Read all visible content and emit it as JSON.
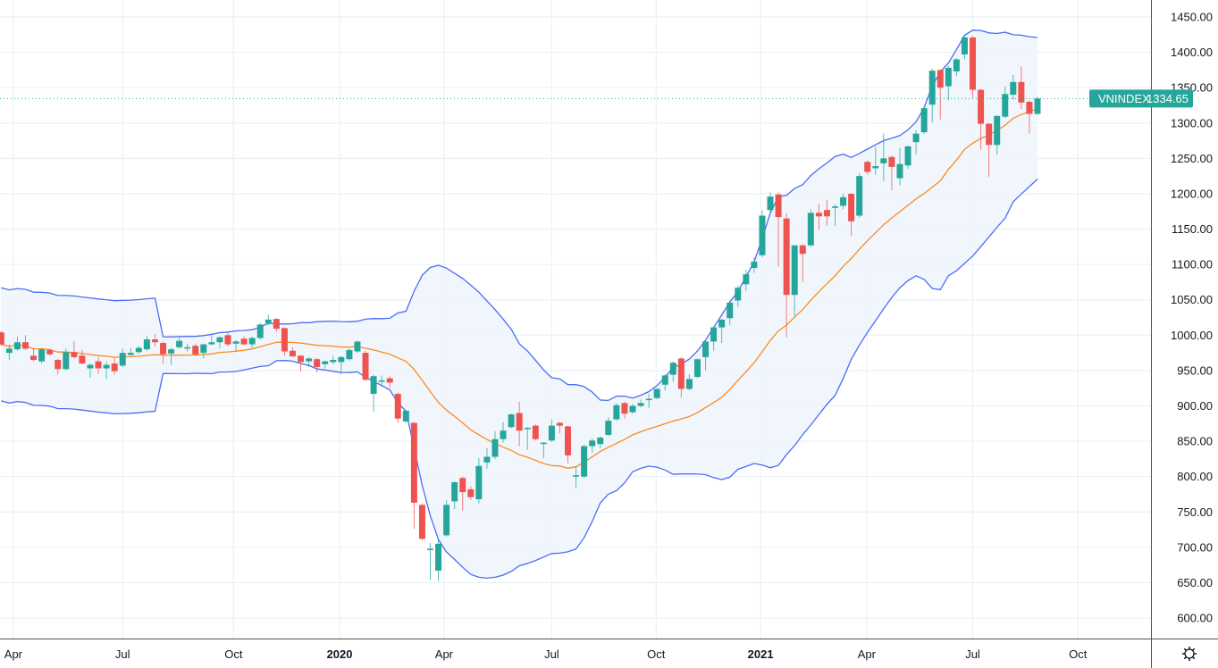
{
  "chart_data": {
    "type": "candlestick",
    "symbol": "VNINDEX",
    "last_price": "1334.65",
    "interval": "weekly",
    "ylim": [
      600,
      1450
    ],
    "y_ticks": [
      "600.00",
      "650.00",
      "700.00",
      "750.00",
      "800.00",
      "850.00",
      "900.00",
      "950.00",
      "1000.00",
      "1050.00",
      "1100.00",
      "1150.00",
      "1200.00",
      "1250.00",
      "1300.00",
      "1350.00",
      "1400.00",
      "1450.00"
    ],
    "x_ticks": [
      "Apr",
      "Jul",
      "Oct",
      "2020",
      "Apr",
      "Jul",
      "Oct",
      "2021",
      "Apr",
      "Jul",
      "Oct"
    ],
    "grid": true,
    "indicators": [
      {
        "type": "bollinger_bands",
        "period": 20,
        "stddev": 2
      }
    ],
    "colors": {
      "up": "#26a69a",
      "down": "#ef5350",
      "band": "#4a6cf7",
      "basis": "#ff8a1f",
      "band_fill": "#eef5fc",
      "grid": "#e6eef5",
      "price_label": "#26a69a"
    },
    "ohlc": [
      [
        1004,
        1006,
        985,
        987
      ],
      [
        975,
        987,
        965,
        981
      ],
      [
        980,
        998,
        978,
        990
      ],
      [
        990,
        1000,
        979,
        981
      ],
      [
        971,
        981,
        963,
        965
      ],
      [
        963,
        982,
        960,
        980
      ],
      [
        979,
        981,
        971,
        973
      ],
      [
        965,
        967,
        944,
        952
      ],
      [
        952,
        981,
        950,
        976
      ],
      [
        976,
        992,
        967,
        969
      ],
      [
        971,
        979,
        958,
        960
      ],
      [
        953,
        960,
        940,
        958
      ],
      [
        963,
        969,
        945,
        953
      ],
      [
        953,
        963,
        938,
        958
      ],
      [
        960,
        968,
        944,
        949
      ],
      [
        957,
        981,
        955,
        975
      ],
      [
        972,
        982,
        971,
        975
      ],
      [
        976,
        985,
        974,
        982
      ],
      [
        980,
        999,
        978,
        994
      ],
      [
        994,
        1002,
        984,
        990
      ],
      [
        989,
        991,
        960,
        973
      ],
      [
        974,
        982,
        958,
        980
      ],
      [
        983,
        999,
        981,
        992
      ],
      [
        983,
        988,
        977,
        983
      ],
      [
        985,
        988,
        971,
        973
      ],
      [
        975,
        988,
        967,
        987
      ],
      [
        987,
        1000,
        986,
        990
      ],
      [
        990,
        998,
        982,
        997
      ],
      [
        1000,
        1004,
        984,
        987
      ],
      [
        988,
        993,
        978,
        991
      ],
      [
        995,
        998,
        986,
        987
      ],
      [
        987,
        998,
        982,
        996
      ],
      [
        996,
        1017,
        994,
        1015
      ],
      [
        1017,
        1029,
        1014,
        1022
      ],
      [
        1023,
        1024,
        1005,
        1009
      ],
      [
        1010,
        1011,
        971,
        977
      ],
      [
        978,
        983,
        969,
        970
      ],
      [
        971,
        972,
        949,
        962
      ],
      [
        963,
        969,
        955,
        967
      ],
      [
        966,
        968,
        947,
        955
      ],
      [
        959,
        964,
        953,
        963
      ],
      [
        962,
        971,
        959,
        965
      ],
      [
        962,
        971,
        945,
        969
      ],
      [
        966,
        981,
        964,
        979
      ],
      [
        977,
        992,
        975,
        991
      ],
      [
        975,
        978,
        935,
        937
      ],
      [
        917,
        944,
        892,
        942
      ],
      [
        936,
        943,
        928,
        936
      ],
      [
        939,
        942,
        926,
        933
      ],
      [
        917,
        919,
        876,
        882
      ],
      [
        878,
        894,
        876,
        893
      ],
      [
        876,
        877,
        726,
        763
      ],
      [
        760,
        762,
        710,
        712
      ],
      [
        698,
        706,
        654,
        698
      ],
      [
        667,
        712,
        652,
        705
      ],
      [
        717,
        767,
        715,
        760
      ],
      [
        765,
        793,
        754,
        792
      ],
      [
        798,
        800,
        752,
        778
      ],
      [
        782,
        786,
        767,
        771
      ],
      [
        768,
        826,
        762,
        815
      ],
      [
        820,
        840,
        811,
        828
      ],
      [
        828,
        864,
        825,
        853
      ],
      [
        853,
        877,
        848,
        865
      ],
      [
        870,
        889,
        868,
        888
      ],
      [
        890,
        906,
        843,
        865
      ],
      [
        869,
        870,
        838,
        869
      ],
      [
        872,
        874,
        851,
        853
      ],
      [
        848,
        849,
        826,
        848
      ],
      [
        851,
        881,
        849,
        872
      ],
      [
        876,
        877,
        861,
        872
      ],
      [
        871,
        872,
        819,
        830
      ],
      [
        800,
        815,
        784,
        802
      ],
      [
        800,
        845,
        798,
        843
      ],
      [
        843,
        854,
        834,
        851
      ],
      [
        846,
        857,
        840,
        855
      ],
      [
        859,
        884,
        857,
        879
      ],
      [
        881,
        904,
        879,
        901
      ],
      [
        904,
        906,
        882,
        889
      ],
      [
        891,
        903,
        889,
        900
      ],
      [
        900,
        909,
        898,
        904
      ],
      [
        910,
        917,
        897,
        910
      ],
      [
        911,
        925,
        909,
        924
      ],
      [
        930,
        945,
        922,
        943
      ],
      [
        944,
        963,
        934,
        961
      ],
      [
        967,
        969,
        912,
        924
      ],
      [
        924,
        945,
        922,
        938
      ],
      [
        941,
        967,
        939,
        966
      ],
      [
        969,
        992,
        950,
        991
      ],
      [
        991,
        1012,
        978,
        1011
      ],
      [
        1011,
        1023,
        989,
        1022
      ],
      [
        1024,
        1049,
        1014,
        1046
      ],
      [
        1049,
        1070,
        1040,
        1067
      ],
      [
        1072,
        1093,
        1062,
        1086
      ],
      [
        1095,
        1110,
        1088,
        1104
      ],
      [
        1113,
        1177,
        1110,
        1169
      ],
      [
        1177,
        1202,
        1174,
        1196
      ],
      [
        1199,
        1202,
        1097,
        1167
      ],
      [
        1165,
        1172,
        997,
        1057
      ],
      [
        1057,
        1127,
        1027,
        1127
      ],
      [
        1127,
        1129,
        1075,
        1115
      ],
      [
        1127,
        1178,
        1125,
        1173
      ],
      [
        1173,
        1186,
        1149,
        1168
      ],
      [
        1177,
        1191,
        1155,
        1168
      ],
      [
        1180,
        1185,
        1155,
        1182
      ],
      [
        1183,
        1200,
        1178,
        1195
      ],
      [
        1200,
        1201,
        1141,
        1161
      ],
      [
        1169,
        1229,
        1166,
        1225
      ],
      [
        1245,
        1247,
        1227,
        1231
      ],
      [
        1236,
        1266,
        1227,
        1239
      ],
      [
        1243,
        1285,
        1218,
        1250
      ],
      [
        1252,
        1254,
        1205,
        1238
      ],
      [
        1222,
        1265,
        1212,
        1242
      ],
      [
        1240,
        1268,
        1235,
        1267
      ],
      [
        1273,
        1290,
        1256,
        1285
      ],
      [
        1287,
        1324,
        1285,
        1321
      ],
      [
        1326,
        1377,
        1301,
        1374
      ],
      [
        1375,
        1376,
        1305,
        1350
      ],
      [
        1352,
        1381,
        1332,
        1378
      ],
      [
        1373,
        1392,
        1366,
        1390
      ],
      [
        1397,
        1423,
        1390,
        1421
      ],
      [
        1421,
        1423,
        1336,
        1347
      ],
      [
        1347,
        1348,
        1262,
        1299
      ],
      [
        1299,
        1300,
        1224,
        1269
      ],
      [
        1269,
        1311,
        1255,
        1310
      ],
      [
        1309,
        1352,
        1307,
        1341
      ],
      [
        1340,
        1368,
        1333,
        1358
      ],
      [
        1358,
        1380,
        1320,
        1329
      ],
      [
        1330,
        1332,
        1285,
        1313
      ],
      [
        1313,
        1337,
        1311,
        1334.65
      ]
    ]
  },
  "settings_icon": "gear-icon"
}
